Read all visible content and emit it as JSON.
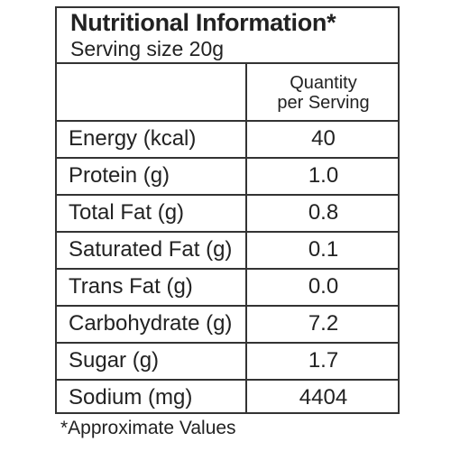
{
  "title": "Nutritional Information*",
  "serving_size": "Serving size 20g",
  "column_header": [
    "Quantity",
    "per Serving"
  ],
  "rows": [
    {
      "nutrient": "Energy (kcal)",
      "quantity": "40"
    },
    {
      "nutrient": "Protein (g)",
      "quantity": "1.0"
    },
    {
      "nutrient": "Total Fat (g)",
      "quantity": "0.8"
    },
    {
      "nutrient": "Saturated Fat (g)",
      "quantity": "0.1"
    },
    {
      "nutrient": "Trans Fat (g)",
      "quantity": "0.0"
    },
    {
      "nutrient": "Carbohydrate (g)",
      "quantity": "7.2"
    },
    {
      "nutrient": "Sugar (g)",
      "quantity": "1.7"
    },
    {
      "nutrient": "Sodium (mg)",
      "quantity": "4404"
    }
  ],
  "footnote": "*Approximate Values"
}
